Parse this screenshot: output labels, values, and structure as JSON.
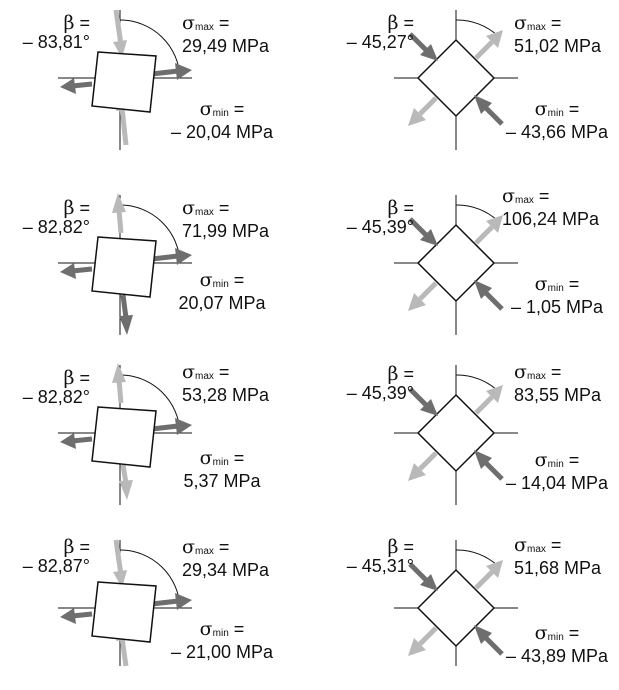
{
  "symbols": {
    "beta": "β",
    "sigma": "σ",
    "sub_max": "max",
    "sub_min": "min",
    "eq": "="
  },
  "cases": [
    {
      "type": "square",
      "beta": "– 83,81°",
      "smax": "29,49 MPa",
      "smin": "– 20,04 MPa"
    },
    {
      "type": "diamond",
      "beta": "– 45,27°",
      "smax": "51,02 MPa",
      "smin": "– 43,66 MPa"
    },
    {
      "type": "square",
      "beta": "– 82,82°",
      "smax": "71,99 MPa",
      "smin": "20,07 MPa"
    },
    {
      "type": "diamond",
      "beta": "– 45,39°",
      "smax": "106,24 MPa",
      "smin": "– 1,05 MPa"
    },
    {
      "type": "square",
      "beta": "– 82,82°",
      "smax": "53,28 MPa",
      "smin": "5,37 MPa"
    },
    {
      "type": "diamond",
      "beta": "– 45,39°",
      "smax": "83,55 MPa",
      "smin": "– 14,04 MPa"
    },
    {
      "type": "square",
      "beta": "– 82,87°",
      "smax": "29,34 MPa",
      "smin": "– 21,00 MPa"
    },
    {
      "type": "diamond",
      "beta": "– 45,31°",
      "smax": "51,68 MPa",
      "smin": "– 43,89 MPa"
    }
  ],
  "colors": {
    "dark_arrow": "#6e6e6e",
    "light_arrow": "#b9b9b9",
    "line": "#111111"
  }
}
